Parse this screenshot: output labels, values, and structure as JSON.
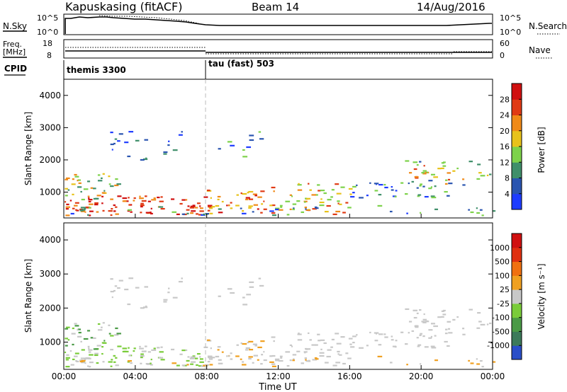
{
  "header": {
    "station": "Kapuskasing (fitACF)",
    "beam": "Beam 14",
    "date": "14/Aug/2016"
  },
  "top_panels": {
    "nsky_label": "N.Sky",
    "nsky_ticks": [
      "10^5",
      "10^0"
    ],
    "nsearch_label": "N.Search",
    "nsearch_ticks": [
      "10^5",
      "10^0"
    ],
    "freq_label_1": "Freq.",
    "freq_label_2": "[MHz]",
    "freq_ticks": [
      "18",
      "8"
    ],
    "nave_label": "Nave",
    "nave_ticks": [
      "60",
      "0"
    ],
    "cpid_label": "CPID",
    "cpid_segments": [
      {
        "name": "themis 3300",
        "start_hour": 0
      },
      {
        "name": "tau (fast) 503",
        "start_hour": 8
      }
    ]
  },
  "chart_data": [
    {
      "type": "heatmap",
      "name": "power",
      "ylabel": "Slant Range [km]",
      "xlabel": "",
      "ylim": [
        200,
        4500
      ],
      "yticks": [
        "1000",
        "2000",
        "3000",
        "4000"
      ],
      "colorbar": {
        "label": "Power [dB]",
        "ticks": [
          "4",
          "8",
          "12",
          "16",
          "20",
          "24",
          "28"
        ],
        "colors": [
          "#1e3cff",
          "#2a55b0",
          "#3f8f6a",
          "#7dd24a",
          "#e8c21a",
          "#f08a18",
          "#e03a14",
          "#d01010"
        ]
      }
    },
    {
      "type": "heatmap",
      "name": "velocity",
      "ylabel": "Slant Range [km]",
      "xlabel": "Time UT",
      "ylim": [
        200,
        4500
      ],
      "yticks": [
        "1000",
        "2000",
        "3000",
        "4000"
      ],
      "xticks": [
        "00:00",
        "04:00",
        "08:00",
        "12:00",
        "16:00",
        "20:00",
        "00:00"
      ],
      "colorbar": {
        "label": "Velocity [m s⁻¹]",
        "ticks": [
          "1000",
          "500",
          "100",
          "25",
          "-25",
          "-100",
          "-500",
          "-1000"
        ],
        "colors": [
          "#2a4ec8",
          "#3c7a5a",
          "#4a9a46",
          "#7acc3a",
          "#c8c8c8",
          "#f0a020",
          "#f07010",
          "#e03010",
          "#d01010"
        ]
      }
    }
  ]
}
